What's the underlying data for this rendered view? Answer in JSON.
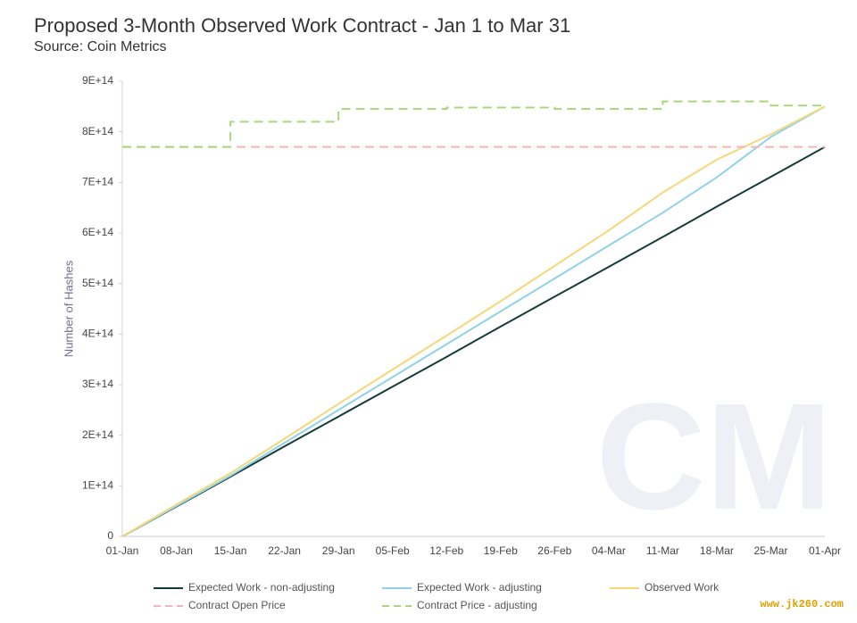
{
  "chart_data": {
    "type": "line",
    "title": "Proposed 3-Month Observed Work Contract - Jan 1 to Mar 31",
    "subtitle": "Source: Coin Metrics",
    "y_label": "Number of Hashes",
    "watermark": "www.jk260.com",
    "categories": [
      "01-Jan",
      "08-Jan",
      "15-Jan",
      "22-Jan",
      "29-Jan",
      "05-Feb",
      "12-Feb",
      "19-Feb",
      "26-Feb",
      "04-Mar",
      "11-Mar",
      "18-Mar",
      "25-Mar",
      "01-Apr"
    ],
    "ylim": [
      0,
      900000000000000
    ],
    "yticks": [
      0,
      {
        "value": 100000000000000,
        "label": "1E+14"
      },
      {
        "value": 200000000000000,
        "label": "2E+14"
      },
      {
        "value": 300000000000000,
        "label": "3E+14"
      },
      {
        "value": 400000000000000,
        "label": "4E+14"
      },
      {
        "value": 500000000000000,
        "label": "5E+14"
      },
      {
        "value": 600000000000000,
        "label": "6E+14"
      },
      {
        "value": 700000000000000,
        "label": "7E+14"
      },
      {
        "value": 800000000000000,
        "label": "8E+14"
      },
      {
        "value": 900000000000000,
        "label": "9E+14"
      }
    ],
    "series": [
      {
        "name": "Expected Work - non-adjusting",
        "color": "#173a3a",
        "dash": false,
        "step": false,
        "values": [
          0,
          59000000000000,
          118000000000000,
          178000000000000,
          237000000000000,
          296000000000000,
          355000000000000,
          415000000000000,
          474000000000000,
          533000000000000,
          592000000000000,
          652000000000000,
          711000000000000,
          770000000000000
        ]
      },
      {
        "name": "Expected Work - adjusting",
        "color": "#8fd3e8",
        "dash": false,
        "step": false,
        "values": [
          0,
          60000000000000,
          120000000000000,
          185000000000000,
          250000000000000,
          315000000000000,
          380000000000000,
          445000000000000,
          510000000000000,
          575000000000000,
          640000000000000,
          710000000000000,
          790000000000000,
          850000000000000
        ]
      },
      {
        "name": "Observed Work",
        "color": "#f5d77a",
        "dash": false,
        "step": false,
        "values": [
          0,
          63000000000000,
          125000000000000,
          193000000000000,
          262000000000000,
          330000000000000,
          397000000000000,
          465000000000000,
          535000000000000,
          605000000000000,
          680000000000000,
          745000000000000,
          795000000000000,
          850000000000000
        ]
      },
      {
        "name": "Contract Open Price",
        "color": "#f4b6b0",
        "dash": true,
        "step": false,
        "values": [
          770000000000000,
          770000000000000,
          770000000000000,
          770000000000000,
          770000000000000,
          770000000000000,
          770000000000000,
          770000000000000,
          770000000000000,
          770000000000000,
          770000000000000,
          770000000000000,
          770000000000000,
          770000000000000
        ]
      },
      {
        "name": "Contract Price - adjusting",
        "color": "#a9d87c",
        "dash": true,
        "step": true,
        "values": [
          770000000000000,
          770000000000000,
          820000000000000,
          820000000000000,
          845000000000000,
          845000000000000,
          848000000000000,
          848000000000000,
          845000000000000,
          845000000000000,
          860000000000000,
          860000000000000,
          852000000000000,
          852000000000000
        ]
      }
    ]
  }
}
